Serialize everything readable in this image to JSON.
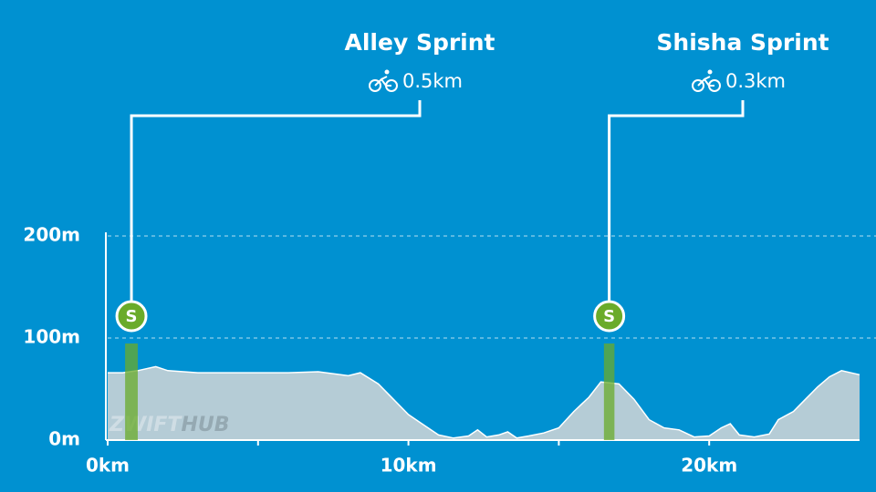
{
  "chart_data": {
    "type": "area",
    "x": [
      0,
      0.5,
      1,
      1.6,
      2,
      3,
      4,
      5,
      6,
      7,
      8,
      8.4,
      9,
      9.5,
      10,
      10.5,
      11,
      11.5,
      12,
      12.3,
      12.6,
      13,
      13.3,
      13.6,
      14,
      14.5,
      15,
      15.5,
      16,
      16.4,
      17,
      17.5,
      18,
      18.5,
      19,
      19.5,
      20,
      20.4,
      20.7,
      21,
      21.5,
      22,
      22.3,
      22.8,
      23.2,
      23.6,
      24,
      24.4,
      25
    ],
    "values": [
      66,
      66,
      68,
      72,
      68,
      66,
      66,
      66,
      66,
      67,
      63,
      66,
      55,
      40,
      25,
      15,
      5,
      2,
      4,
      10,
      3,
      5,
      8,
      2,
      4,
      7,
      12,
      28,
      42,
      57,
      55,
      40,
      20,
      12,
      10,
      3,
      4,
      12,
      16,
      5,
      3,
      6,
      20,
      28,
      40,
      52,
      62,
      68,
      64
    ],
    "color": "#b5ccd6",
    "xlim": [
      0,
      25
    ],
    "ylim": [
      0,
      200
    ],
    "xticks": [
      {
        "value": 0,
        "label": "0km"
      },
      {
        "value": 10,
        "label": "10km"
      },
      {
        "value": 20,
        "label": "20km"
      }
    ],
    "xminorticks": [
      5,
      15
    ],
    "yticks": [
      {
        "value": 0,
        "label": "0m"
      },
      {
        "value": 100,
        "label": "100m"
      },
      {
        "value": 200,
        "label": "200m"
      }
    ],
    "grid": true,
    "watermark": [
      "ZWIFT",
      "HUB"
    ],
    "segments": [
      {
        "name": "Alley Sprint",
        "length": "0.5km",
        "badge": "S",
        "start": 0.58,
        "end": 1.0,
        "color": "#6aab2a"
      },
      {
        "name": "Shisha Sprint",
        "length": "0.3km",
        "badge": "S",
        "start": 16.5,
        "end": 16.85,
        "color": "#6aab2a"
      }
    ]
  }
}
